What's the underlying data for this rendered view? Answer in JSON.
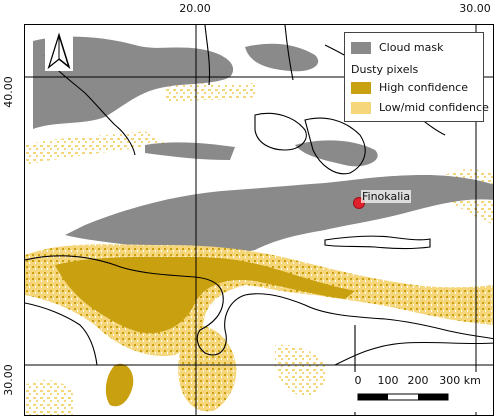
{
  "graticule": {
    "top_labels": [
      "20.00",
      "30.00"
    ],
    "left_labels": [
      "40.00",
      "30.00"
    ]
  },
  "legend": {
    "cloud_label": "Cloud mask",
    "dust_heading": "Dusty pixels",
    "high_label": "High confidence",
    "low_label": "Low/mid confidence"
  },
  "site": {
    "name": "Finokalia"
  },
  "scalebar": {
    "labels": [
      "0",
      "100",
      "200",
      "300 km"
    ]
  },
  "colors": {
    "cloud": "#8a8a8a",
    "high_confidence": "#c9a010",
    "low_confidence": "#f5d67a",
    "site_marker": "#e0202a",
    "coastline": "#000000"
  },
  "icons": {
    "north_arrow": "north-arrow-icon"
  }
}
